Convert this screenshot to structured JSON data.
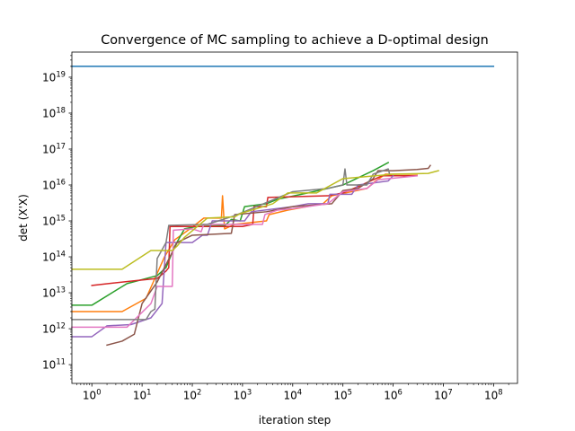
{
  "chart_data": {
    "type": "line",
    "title": "Convergence of MC sampling to achieve a D-optimal design",
    "xlabel": "iteration step",
    "ylabel": "det (X'X)",
    "xscale": "log",
    "yscale": "log",
    "xlim": [
      0.4,
      300000000.0
    ],
    "ylim": [
      30000000000.0,
      5e+19
    ],
    "grid": false,
    "xticks": [
      {
        "base": "10",
        "exp": "0",
        "value": 1
      },
      {
        "base": "10",
        "exp": "1",
        "value": 10
      },
      {
        "base": "10",
        "exp": "2",
        "value": 100
      },
      {
        "base": "10",
        "exp": "3",
        "value": 1000
      },
      {
        "base": "10",
        "exp": "4",
        "value": 10000
      },
      {
        "base": "10",
        "exp": "5",
        "value": 100000
      },
      {
        "base": "10",
        "exp": "6",
        "value": 1000000
      },
      {
        "base": "10",
        "exp": "7",
        "value": 10000000
      },
      {
        "base": "10",
        "exp": "8",
        "value": 100000000
      }
    ],
    "yticks": [
      {
        "base": "10",
        "exp": "11",
        "value": 100000000000.0
      },
      {
        "base": "10",
        "exp": "12",
        "value": 1000000000000.0
      },
      {
        "base": "10",
        "exp": "13",
        "value": 10000000000000.0
      },
      {
        "base": "10",
        "exp": "14",
        "value": 100000000000000.0
      },
      {
        "base": "10",
        "exp": "15",
        "value": 1000000000000000.0
      },
      {
        "base": "10",
        "exp": "16",
        "value": 1e+16
      },
      {
        "base": "10",
        "exp": "17",
        "value": 1e+17
      },
      {
        "base": "10",
        "exp": "18",
        "value": 1e+18
      },
      {
        "base": "10",
        "exp": "19",
        "value": 1e+19
      }
    ],
    "series": [
      {
        "color": "#1f77b4",
        "points": [
          [
            0.4,
            2e+19
          ],
          [
            100000000.0,
            2e+19
          ]
        ]
      },
      {
        "color": "#ff7f0e",
        "points": [
          [
            0.4,
            3000000000000.0
          ],
          [
            4,
            3000000000000.0
          ],
          [
            12,
            7000000000000.0
          ],
          [
            18,
            25000000000000.0
          ],
          [
            28,
            100000000000000.0
          ],
          [
            45,
            300000000000000.0
          ],
          [
            90,
            600000000000000.0
          ],
          [
            170,
            1200000000000000.0
          ],
          [
            380,
            1200000000000000.0
          ],
          [
            400,
            5000000000000000.0
          ],
          [
            440,
            600000000000000.0
          ],
          [
            700,
            800000000000000.0
          ],
          [
            3000,
            1000000000000000.0
          ],
          [
            3400,
            1500000000000000.0
          ],
          [
            8000,
            2000000000000000.0
          ],
          [
            40000,
            3000000000000000.0
          ],
          [
            60000,
            5000000000000000.0
          ],
          [
            300000,
            8000000000000000.0
          ],
          [
            450000,
            1.3e+16
          ],
          [
            700000,
            2e+16
          ],
          [
            3000000,
            2e+16
          ]
        ]
      },
      {
        "color": "#2ca02c",
        "points": [
          [
            0.4,
            4500000000000.0
          ],
          [
            1,
            4500000000000.0
          ],
          [
            5,
            18000000000000.0
          ],
          [
            20,
            30000000000000.0
          ],
          [
            30,
            50000000000000.0
          ],
          [
            45,
            200000000000000.0
          ],
          [
            70,
            600000000000000.0
          ],
          [
            120,
            700000000000000.0
          ],
          [
            450,
            750000000000000.0
          ],
          [
            600,
            1100000000000000.0
          ],
          [
            900,
            1000000000000000.0
          ],
          [
            1100,
            2500000000000000.0
          ],
          [
            3000,
            3000000000000000.0
          ],
          [
            5000,
            4000000000000000.0
          ],
          [
            20000,
            6000000000000000.0
          ],
          [
            100000,
            1e+16
          ],
          [
            400000,
            2.5e+16
          ],
          [
            800000,
            4.2e+16
          ]
        ]
      },
      {
        "color": "#d62728",
        "points": [
          [
            1,
            16000000000000.0
          ],
          [
            8,
            22000000000000.0
          ],
          [
            20,
            25000000000000.0
          ],
          [
            30,
            40000000000000.0
          ],
          [
            34,
            50000000000000.0
          ],
          [
            36,
            700000000000000.0
          ],
          [
            100,
            700000000000000.0
          ],
          [
            1000,
            700000000000000.0
          ],
          [
            1600,
            800000000000000.0
          ],
          [
            1700,
            2500000000000000.0
          ],
          [
            3000,
            2500000000000000.0
          ],
          [
            3200,
            4500000000000000.0
          ],
          [
            50000,
            5000000000000000.0
          ],
          [
            100000,
            6000000000000000.0
          ],
          [
            200000,
            9000000000000000.0
          ],
          [
            600000,
            1.8e+16
          ],
          [
            3000000,
            1.8e+16
          ]
        ]
      },
      {
        "color": "#9467bd",
        "points": [
          [
            0.4,
            600000000000.0
          ],
          [
            1,
            600000000000.0
          ],
          [
            2,
            1200000000000.0
          ],
          [
            6,
            1300000000000.0
          ],
          [
            15,
            2000000000000.0
          ],
          [
            25,
            5000000000000.0
          ],
          [
            30,
            250000000000000.0
          ],
          [
            100,
            250000000000000.0
          ],
          [
            160,
            400000000000000.0
          ],
          [
            200,
            400000000000000.0
          ],
          [
            250,
            1000000000000000.0
          ],
          [
            1100,
            1000000000000000.0
          ],
          [
            1500,
            1800000000000000.0
          ],
          [
            10000,
            2500000000000000.0
          ],
          [
            20000,
            3000000000000000.0
          ],
          [
            50000,
            3000000000000000.0
          ],
          [
            55000,
            5500000000000000.0
          ],
          [
            150000,
            5500000000000000.0
          ],
          [
            200000,
            1e+16
          ],
          [
            800000,
            1.3e+16
          ],
          [
            1000000,
            1.8e+16
          ]
        ]
      },
      {
        "color": "#8c564b",
        "points": [
          [
            2,
            350000000000.0
          ],
          [
            4,
            450000000000.0
          ],
          [
            7,
            700000000000.0
          ],
          [
            10,
            5000000000000.0
          ],
          [
            20,
            20000000000000.0
          ],
          [
            50,
            250000000000000.0
          ],
          [
            100,
            400000000000000.0
          ],
          [
            600,
            450000000000000.0
          ],
          [
            700,
            1500000000000000.0
          ],
          [
            3000,
            1800000000000000.0
          ],
          [
            10000,
            2500000000000000.0
          ],
          [
            60000,
            3000000000000000.0
          ],
          [
            100000,
            7000000000000000.0
          ],
          [
            200000,
            8000000000000000.0
          ],
          [
            400000,
            1.5e+16
          ],
          [
            500000,
            2.5e+16
          ],
          [
            1000000,
            2.5e+16
          ],
          [
            3000000,
            2.7e+16
          ],
          [
            5000000,
            2.9e+16
          ],
          [
            5500000,
            3.5e+16
          ]
        ]
      },
      {
        "color": "#e377c2",
        "points": [
          [
            0.4,
            1100000000000.0
          ],
          [
            5,
            1100000000000.0
          ],
          [
            15,
            5000000000000.0
          ],
          [
            20,
            15000000000000.0
          ],
          [
            40,
            15000000000000.0
          ],
          [
            42,
            550000000000000.0
          ],
          [
            100,
            600000000000000.0
          ],
          [
            150,
            500000000000000.0
          ],
          [
            170,
            800000000000000.0
          ],
          [
            2500,
            800000000000000.0
          ],
          [
            2800,
            1500000000000000.0
          ],
          [
            5000,
            2000000000000000.0
          ],
          [
            10000,
            2200000000000000.0
          ],
          [
            50000,
            3000000000000000.0
          ],
          [
            100000,
            6500000000000000.0
          ],
          [
            300000,
            8000000000000000.0
          ],
          [
            500000,
            1.4e+16
          ],
          [
            3000000,
            1.8e+16
          ]
        ]
      },
      {
        "color": "#7f7f7f",
        "points": [
          [
            0.4,
            1800000000000.0
          ],
          [
            8,
            1800000000000.0
          ],
          [
            12,
            1800000000000.0
          ],
          [
            15,
            3000000000000.0
          ],
          [
            18,
            3500000000000.0
          ],
          [
            20,
            90000000000000.0
          ],
          [
            30,
            250000000000000.0
          ],
          [
            34,
            750000000000000.0
          ],
          [
            200,
            800000000000000.0
          ],
          [
            700,
            1400000000000000.0
          ],
          [
            10000,
            6500000000000000.0
          ],
          [
            50000,
            8000000000000000.0
          ],
          [
            100000,
            1e+16
          ],
          [
            110000,
            2.8e+16
          ],
          [
            120000,
            1e+16
          ],
          [
            300000,
            1e+16
          ],
          [
            400000,
            2e+16
          ],
          [
            800000,
            2.8e+16
          ],
          [
            850000,
            2e+16
          ]
        ]
      },
      {
        "color": "#bcbd22",
        "points": [
          [
            0.4,
            45000000000000.0
          ],
          [
            4,
            45000000000000.0
          ],
          [
            15,
            150000000000000.0
          ],
          [
            40,
            150000000000000.0
          ],
          [
            50,
            200000000000000.0
          ],
          [
            70,
            350000000000000.0
          ],
          [
            200,
            1200000000000000.0
          ],
          [
            700,
            1300000000000000.0
          ],
          [
            900,
            1600000000000000.0
          ],
          [
            4000,
            3000000000000000.0
          ],
          [
            8000,
            6000000000000000.0
          ],
          [
            30000,
            6000000000000000.0
          ],
          [
            100000,
            1.5e+16
          ],
          [
            1000000,
            2e+16
          ],
          [
            5000000,
            2.1e+16
          ],
          [
            8000000,
            2.5e+16
          ]
        ]
      }
    ]
  }
}
